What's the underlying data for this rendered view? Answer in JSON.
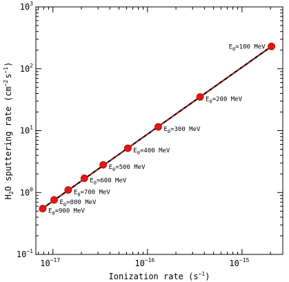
{
  "chart_data": {
    "type": "scatter",
    "xlabel": "Ionization rate (s",
    "xlabel_sup": "−1",
    "xlabel_tail": ")",
    "ylabel_parts": [
      "H",
      "2",
      "O sputtering rate (cm",
      "−2",
      "s",
      "−1",
      ")"
    ],
    "x_scale": "log",
    "y_scale": "log",
    "xlim": [
      6.6e-18,
      2.7e-15
    ],
    "ylim": [
      0.1,
      1000
    ],
    "x_ticks": [
      {
        "value": 1e-17,
        "base": "10",
        "exp": "−17"
      },
      {
        "value": 1e-16,
        "base": "10",
        "exp": "−16"
      },
      {
        "value": 1e-15,
        "base": "10",
        "exp": "−15"
      }
    ],
    "y_ticks": [
      {
        "value": 0.1,
        "base": "10",
        "exp": "−1"
      },
      {
        "value": 1,
        "base": "10",
        "exp": "0"
      },
      {
        "value": 10,
        "base": "10",
        "exp": "1"
      },
      {
        "value": 100,
        "base": "10",
        "exp": "2"
      },
      {
        "value": 1000,
        "base": "10",
        "exp": "3"
      }
    ],
    "points": [
      {
        "x": 2.05e-15,
        "y": 230,
        "label_pre": "E",
        "label_sub": "0",
        "label_post": "=100 MeV",
        "label_side": "left"
      },
      {
        "x": 3.6e-16,
        "y": 35,
        "label_pre": "E",
        "label_sub": "0",
        "label_post": "=200 MeV",
        "label_side": "right"
      },
      {
        "x": 1.3e-16,
        "y": 11.5,
        "label_pre": "E",
        "label_sub": "0",
        "label_post": "=300 MeV",
        "label_side": "right"
      },
      {
        "x": 6.2e-17,
        "y": 5.2,
        "label_pre": "E",
        "label_sub": "0",
        "label_post": "=400 MeV",
        "label_side": "right"
      },
      {
        "x": 3.4e-17,
        "y": 2.8,
        "label_pre": "E",
        "label_sub": "0",
        "label_post": "=500 MeV",
        "label_side": "right"
      },
      {
        "x": 2.15e-17,
        "y": 1.7,
        "label_pre": "E",
        "label_sub": "0",
        "label_post": "=600 MeV",
        "label_side": "right"
      },
      {
        "x": 1.45e-17,
        "y": 1.1,
        "label_pre": "E",
        "label_sub": "0",
        "label_post": "=700 MeV",
        "label_side": "right"
      },
      {
        "x": 1.03e-17,
        "y": 0.76,
        "label_pre": "E",
        "label_sub": "0",
        "label_post": "=800 MeV",
        "label_side": "right"
      },
      {
        "x": 7.8e-18,
        "y": 0.55,
        "label_pre": "E",
        "label_sub": "0",
        "label_post": "=900 MeV",
        "label_side": "right"
      }
    ],
    "fit_line": {
      "x": [
        7.2e-18,
        2.15e-15
      ],
      "y": [
        0.51,
        242
      ]
    },
    "colors": {
      "marker": "#e8170f",
      "marker_edge": "#a00a06",
      "fit_solid": "#000000",
      "fit_dash": "#e8170f"
    },
    "grid": false
  }
}
